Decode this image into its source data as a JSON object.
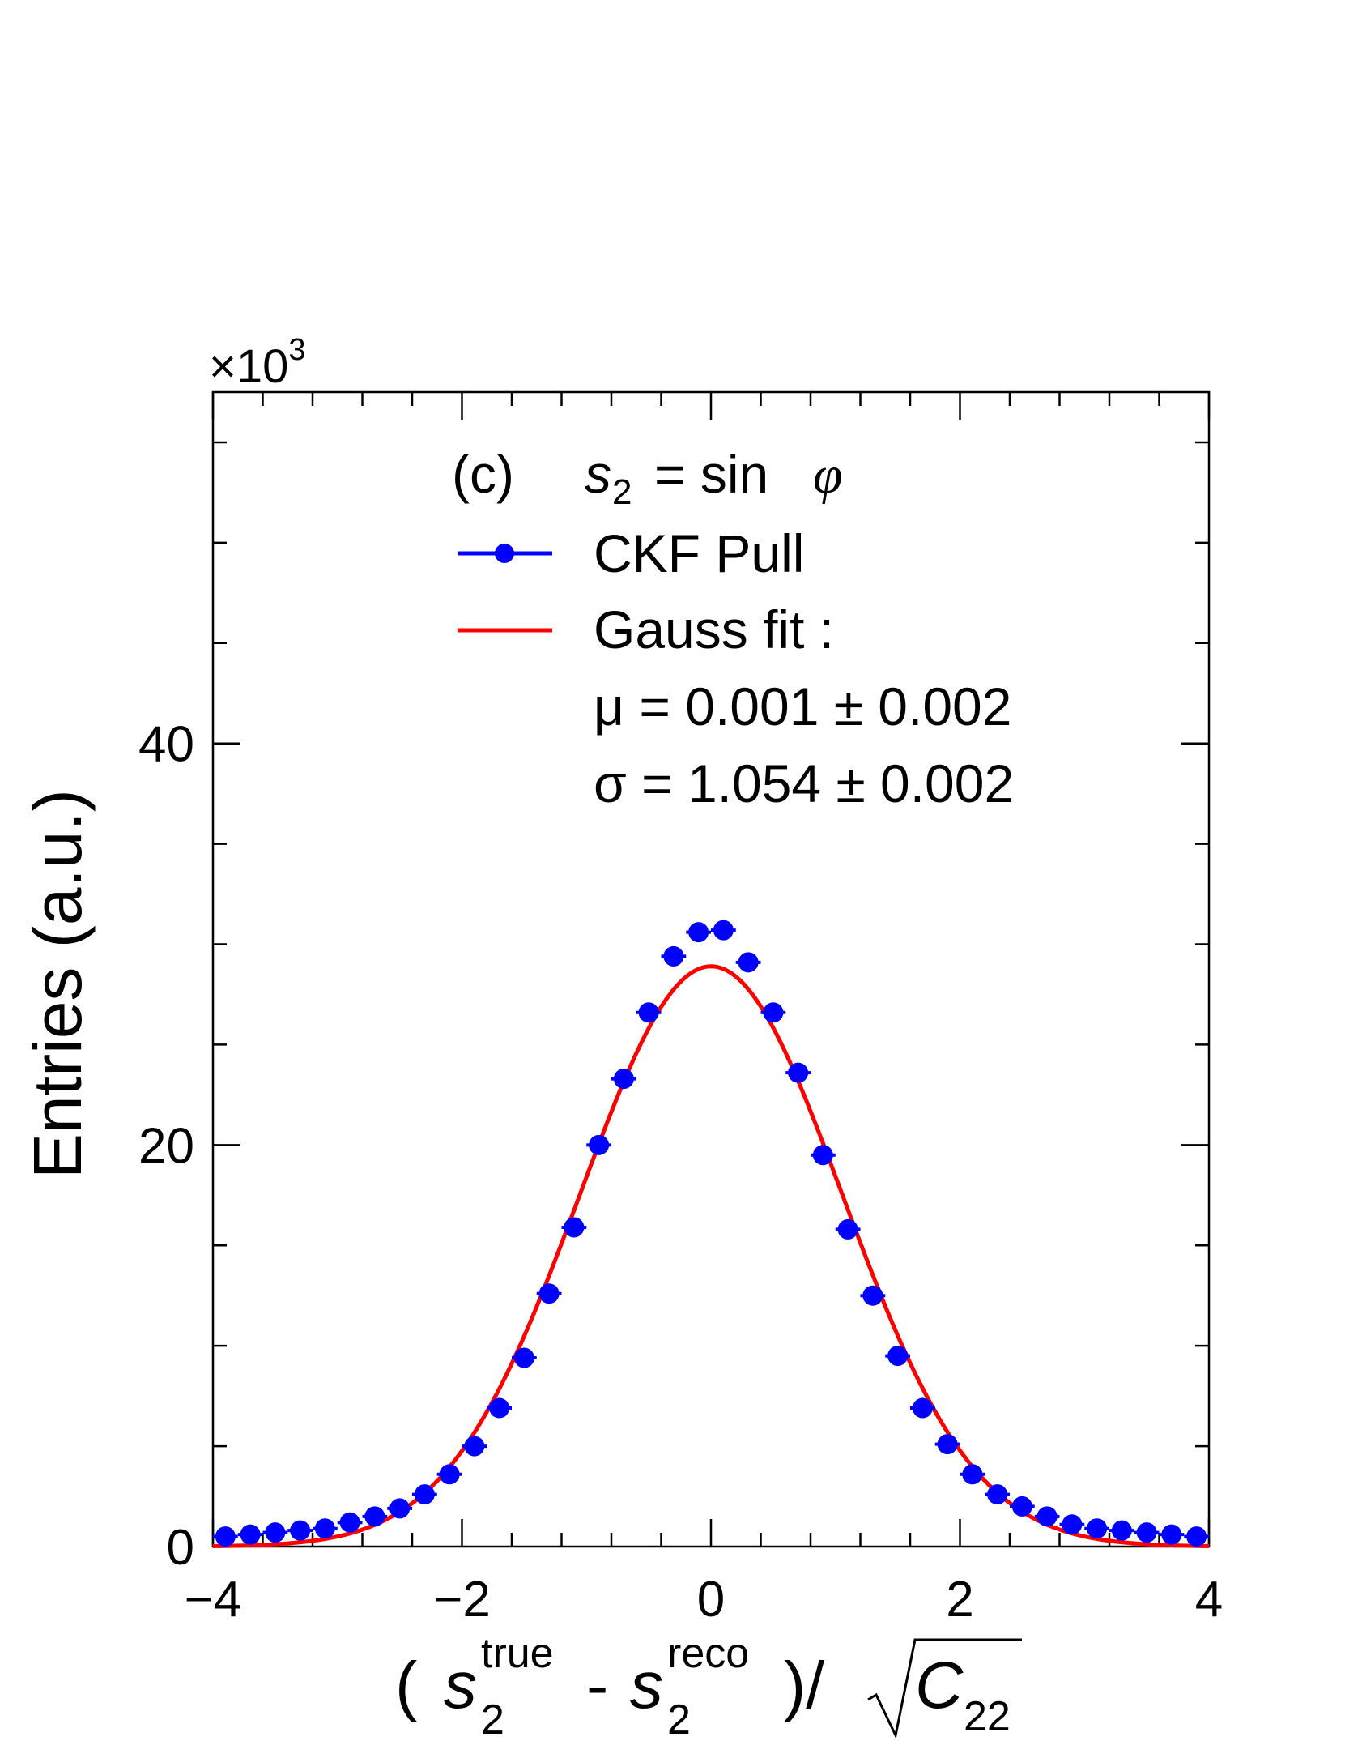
{
  "chart_data": {
    "type": "scatter",
    "multiplier_label": "×10",
    "multiplier_exp": "3",
    "ylabel": "Entries (a.u.)",
    "xlabel": {
      "open": "(",
      "var": "s",
      "sub": "2",
      "sup_true": "true",
      "minus": "-",
      "sup_reco": "reco",
      "close": ")/",
      "cov": "C",
      "cov_sub": "22"
    },
    "xlim": [
      -4,
      4
    ],
    "ylim": [
      0,
      57.5
    ],
    "xticks": [
      -4,
      -2,
      0,
      2,
      4
    ],
    "xtick_labels": [
      "−4",
      "−2",
      "0",
      "2",
      "4"
    ],
    "yticks": [
      0,
      20,
      40
    ],
    "ytick_labels": [
      "0",
      "20",
      "40"
    ],
    "grid": false,
    "legend": {
      "position": "top-center",
      "tag": "(c)",
      "param_var": "s",
      "param_sub": "2",
      "param_eq": "= sin",
      "param_phi": "φ",
      "data_label": "CKF Pull",
      "fit_label": "Gauss fit :",
      "mu_line": "μ = 0.001 ± 0.002",
      "sigma_line": "σ = 1.054 ± 0.002"
    },
    "series": [
      {
        "name": "CKF Pull",
        "kind": "points",
        "color": "#0000ff",
        "x": [
          -3.9,
          -3.7,
          -3.5,
          -3.3,
          -3.1,
          -2.9,
          -2.7,
          -2.5,
          -2.3,
          -2.1,
          -1.9,
          -1.7,
          -1.5,
          -1.3,
          -1.1,
          -0.9,
          -0.7,
          -0.5,
          -0.3,
          -0.1,
          0.1,
          0.3,
          0.5,
          0.7,
          0.9,
          1.1,
          1.3,
          1.5,
          1.7,
          1.9,
          2.1,
          2.3,
          2.5,
          2.7,
          2.9,
          3.1,
          3.3,
          3.5,
          3.7,
          3.9
        ],
        "y": [
          0.5,
          0.6,
          0.7,
          0.8,
          0.9,
          1.2,
          1.5,
          1.9,
          2.6,
          3.6,
          5.0,
          6.9,
          9.4,
          12.6,
          15.9,
          20.0,
          23.3,
          26.6,
          29.4,
          30.6,
          30.7,
          29.1,
          26.6,
          23.6,
          19.5,
          15.8,
          12.5,
          9.5,
          6.9,
          5.1,
          3.6,
          2.6,
          2.0,
          1.5,
          1.1,
          0.9,
          0.8,
          0.7,
          0.6,
          0.5
        ]
      },
      {
        "name": "Gauss fit",
        "kind": "curve",
        "color": "#ff0000",
        "amplitude": 28.9,
        "mu": 0.001,
        "sigma": 1.054
      }
    ]
  }
}
